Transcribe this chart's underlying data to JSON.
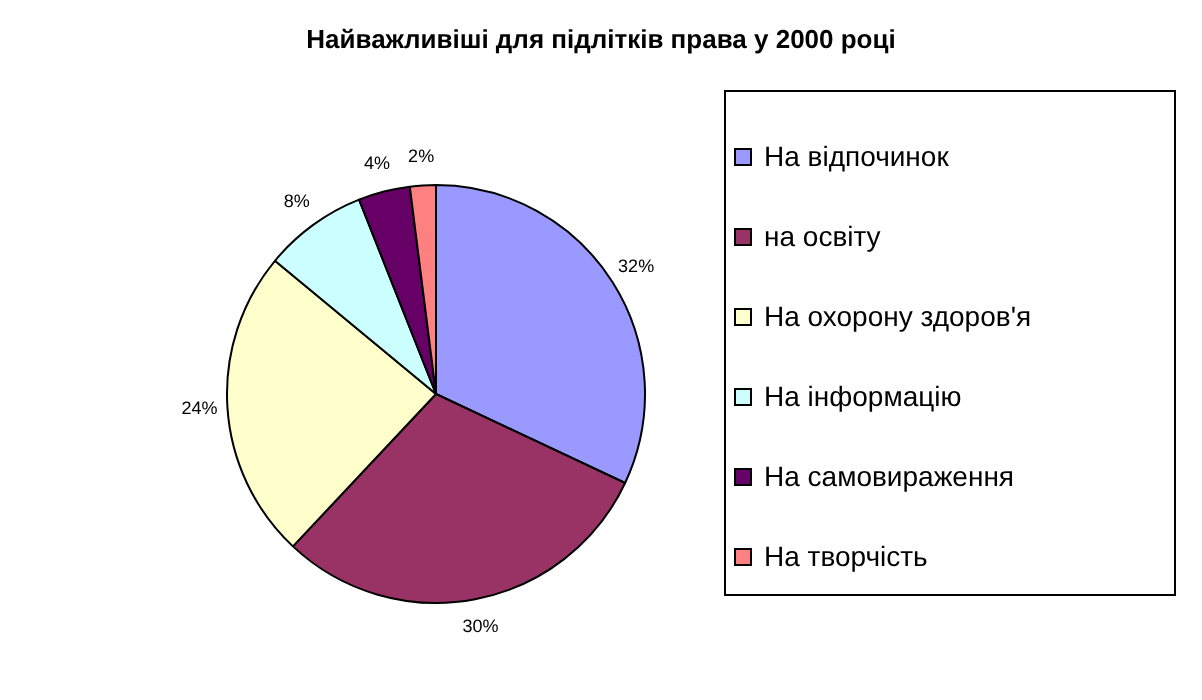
{
  "chart_data": {
    "type": "pie",
    "title": "Найважливіші для підлітків права у 2000 році",
    "categories": [
      "На відпочинок",
      "на освіту",
      "На охорону здоров'я",
      "На інформацію",
      "На самовираження",
      "На творчість"
    ],
    "values": [
      32,
      30,
      24,
      8,
      4,
      2
    ],
    "colors": [
      "#9999ff",
      "#993366",
      "#ffffcc",
      "#ccffff",
      "#660066",
      "#ff8080"
    ],
    "value_labels": [
      "32%",
      "30%",
      "24%",
      "8%",
      "4%",
      "2%"
    ],
    "legend": "right"
  }
}
